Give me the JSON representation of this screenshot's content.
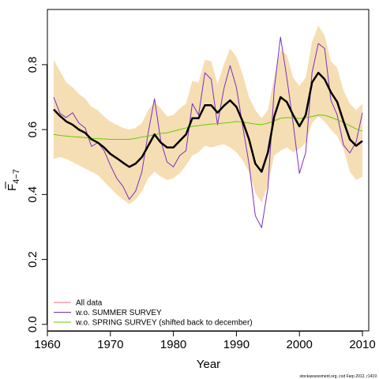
{
  "chart_data": {
    "type": "line",
    "xlabel": "Year",
    "ylabel_main": "F",
    "ylabel_sub": "4−7",
    "xlim": [
      1960,
      2011
    ],
    "ylim": [
      -0.02,
      0.97
    ],
    "x_ticks": [
      1960,
      1970,
      1980,
      1990,
      2000,
      2010
    ],
    "y_ticks": [
      0.0,
      0.2,
      0.4,
      0.6,
      0.8
    ],
    "y_tick_labels": [
      "0.0",
      "0.2",
      "0.4",
      "0.6",
      "0.8"
    ],
    "x": [
      1961,
      1962,
      1963,
      1964,
      1965,
      1966,
      1967,
      1968,
      1969,
      1970,
      1971,
      1972,
      1973,
      1974,
      1975,
      1976,
      1977,
      1978,
      1979,
      1980,
      1981,
      1982,
      1983,
      1984,
      1985,
      1986,
      1987,
      1988,
      1989,
      1990,
      1991,
      1992,
      1993,
      1994,
      1995,
      1996,
      1997,
      1998,
      1999,
      2000,
      2001,
      2002,
      2003,
      2004,
      2005,
      2006,
      2007,
      2008,
      2009,
      2010
    ],
    "band": {
      "color": "#F5DEB3",
      "lower": [
        0.51,
        0.515,
        0.51,
        0.5,
        0.49,
        0.48,
        0.47,
        0.46,
        0.44,
        0.42,
        0.4,
        0.385,
        0.37,
        0.385,
        0.41,
        0.45,
        0.47,
        0.455,
        0.445,
        0.45,
        0.465,
        0.49,
        0.52,
        0.53,
        0.55,
        0.545,
        0.55,
        0.555,
        0.545,
        0.53,
        0.505,
        0.47,
        0.405,
        0.375,
        0.43,
        0.52,
        0.535,
        0.545,
        0.53,
        0.54,
        0.56,
        0.62,
        0.64,
        0.625,
        0.6,
        0.58,
        0.54,
        0.47,
        0.445,
        0.455
      ],
      "upper": [
        0.815,
        0.78,
        0.745,
        0.73,
        0.71,
        0.695,
        0.67,
        0.66,
        0.64,
        0.625,
        0.615,
        0.605,
        0.6,
        0.605,
        0.62,
        0.66,
        0.685,
        0.665,
        0.64,
        0.645,
        0.665,
        0.68,
        0.75,
        0.745,
        0.815,
        0.81,
        0.74,
        0.8,
        0.85,
        0.825,
        0.77,
        0.7,
        0.66,
        0.635,
        0.66,
        0.76,
        0.845,
        0.83,
        0.76,
        0.735,
        0.76,
        0.87,
        0.92,
        0.89,
        0.81,
        0.79,
        0.72,
        0.68,
        0.66,
        0.68
      ]
    },
    "series": [
      {
        "name": "All data",
        "color": "#FF6A80",
        "width": 1,
        "in_legend": true,
        "values": [
          0.662,
          0.642,
          0.625,
          0.615,
          0.6,
          0.59,
          0.57,
          0.56,
          0.545,
          0.525,
          0.512,
          0.498,
          0.485,
          0.495,
          0.515,
          0.55,
          0.585,
          0.56,
          0.545,
          0.545,
          0.565,
          0.585,
          0.635,
          0.635,
          0.675,
          0.675,
          0.652,
          0.673,
          0.69,
          0.67,
          0.625,
          0.57,
          0.495,
          0.47,
          0.53,
          0.64,
          0.7,
          0.685,
          0.645,
          0.61,
          0.645,
          0.745,
          0.775,
          0.755,
          0.715,
          0.685,
          0.625,
          0.57,
          0.55,
          0.565
        ]
      },
      {
        "name": "w.o. SUMMER SURVEY",
        "color": "#7B2FBE",
        "width": 1,
        "in_legend": true,
        "values": [
          0.7,
          0.65,
          0.637,
          0.652,
          0.62,
          0.605,
          0.548,
          0.56,
          0.535,
          0.49,
          0.45,
          0.425,
          0.385,
          0.41,
          0.47,
          0.59,
          0.695,
          0.565,
          0.5,
          0.485,
          0.52,
          0.535,
          0.68,
          0.645,
          0.775,
          0.755,
          0.615,
          0.725,
          0.797,
          0.73,
          0.61,
          0.495,
          0.335,
          0.298,
          0.42,
          0.725,
          0.885,
          0.76,
          0.62,
          0.465,
          0.53,
          0.775,
          0.865,
          0.85,
          0.69,
          0.645,
          0.552,
          0.528,
          0.562,
          0.652
        ]
      },
      {
        "name": "w.o. SPRING SURVEY (shifted back to december)",
        "color": "#66CC00",
        "width": 1,
        "in_legend": true,
        "values": [
          0.585,
          0.582,
          0.58,
          0.578,
          0.577,
          0.575,
          0.573,
          0.572,
          0.571,
          0.57,
          0.57,
          0.57,
          0.57,
          0.573,
          0.577,
          0.58,
          0.584,
          0.588,
          0.59,
          0.595,
          0.6,
          0.605,
          0.61,
          0.612,
          0.615,
          0.617,
          0.618,
          0.62,
          0.622,
          0.625,
          0.623,
          0.62,
          0.617,
          0.615,
          0.62,
          0.627,
          0.635,
          0.637,
          0.636,
          0.634,
          0.637,
          0.64,
          0.645,
          0.644,
          0.638,
          0.63,
          0.622,
          0.612,
          0.602,
          0.595
        ]
      },
      {
        "name": "",
        "color": "#000000",
        "width": 2.5,
        "in_legend": false,
        "values": [
          0.662,
          0.642,
          0.625,
          0.615,
          0.6,
          0.59,
          0.57,
          0.56,
          0.545,
          0.525,
          0.512,
          0.498,
          0.485,
          0.495,
          0.515,
          0.55,
          0.585,
          0.56,
          0.545,
          0.545,
          0.565,
          0.585,
          0.635,
          0.635,
          0.675,
          0.675,
          0.652,
          0.673,
          0.69,
          0.67,
          0.625,
          0.57,
          0.495,
          0.47,
          0.53,
          0.64,
          0.7,
          0.685,
          0.645,
          0.61,
          0.645,
          0.745,
          0.775,
          0.755,
          0.715,
          0.685,
          0.625,
          0.57,
          0.55,
          0.565
        ]
      }
    ],
    "legend_position": "bottom-left"
  },
  "credit": "stockassessment.org, cod Farp 2012, r1419"
}
